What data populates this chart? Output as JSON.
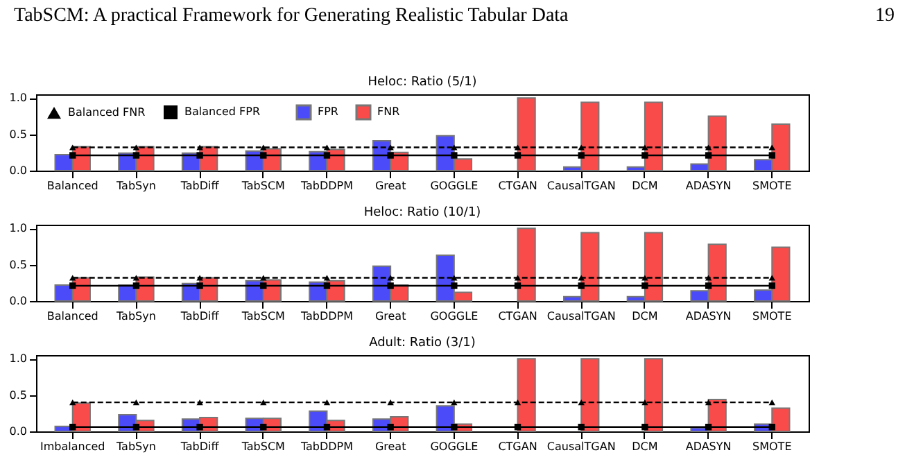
{
  "chart_data": [
    {
      "type": "bar",
      "title": "Heloc: Ratio (5/1)",
      "annotations": [
        "TabSCM: A practical Framework for Generating Realistic Tabular Data",
        "19"
      ],
      "categories": [
        "Balanced",
        "TabSyn",
        "TabDiff",
        "TabSCM",
        "TabDDPM",
        "Great",
        "GOGGLE",
        "CTGAN",
        "CausalTGAN",
        "DCM",
        "ADASYN",
        "SMOTE"
      ],
      "series": [
        {
          "name": "FPR",
          "color": "#4b4bfa",
          "values": [
            0.22,
            0.24,
            0.24,
            0.27,
            0.26,
            0.41,
            0.48,
            0.0,
            0.05,
            0.05,
            0.09,
            0.15
          ]
        },
        {
          "name": "FNR",
          "color": "#fa4b4b",
          "values": [
            0.33,
            0.33,
            0.33,
            0.3,
            0.29,
            0.25,
            0.16,
            1.0,
            0.94,
            0.94,
            0.75,
            0.64
          ]
        },
        {
          "name": "Balanced FNR",
          "type": "line",
          "color": "#000000",
          "marker": "triangle",
          "line_style": "dashed",
          "values": [
            0.32,
            0.32,
            0.32,
            0.32,
            0.32,
            0.32,
            0.32,
            0.32,
            0.32,
            0.32,
            0.32,
            0.32
          ]
        },
        {
          "name": "Balanced FPR",
          "type": "line",
          "color": "#000000",
          "marker": "square",
          "line_style": "solid",
          "values": [
            0.21,
            0.21,
            0.21,
            0.21,
            0.21,
            0.21,
            0.21,
            0.21,
            0.21,
            0.21,
            0.21,
            0.21
          ]
        }
      ],
      "ylim": [
        0,
        1.05
      ],
      "yticks": [
        {
          "value": 0,
          "label": "0.0"
        },
        {
          "value": 0.5,
          "label": "0.5"
        },
        {
          "value": 1,
          "label": "1.0"
        }
      ],
      "grid": false,
      "legend": "top left"
    },
    {
      "type": "bar",
      "title": "Heloc: Ratio (10/1)",
      "categories": [
        "Balanced",
        "TabSyn",
        "TabDiff",
        "TabSCM",
        "TabDDPM",
        "Great",
        "GOGGLE",
        "CTGAN",
        "CausalTGAN",
        "DCM",
        "ADASYN",
        "SMOTE"
      ],
      "series": [
        {
          "name": "FPR",
          "color": "#4b4bfa",
          "values": [
            0.22,
            0.22,
            0.24,
            0.28,
            0.26,
            0.48,
            0.63,
            0.0,
            0.06,
            0.06,
            0.14,
            0.15
          ]
        },
        {
          "name": "FNR",
          "color": "#fa4b4b",
          "values": [
            0.32,
            0.33,
            0.32,
            0.29,
            0.28,
            0.22,
            0.12,
            1.0,
            0.94,
            0.94,
            0.78,
            0.74
          ]
        },
        {
          "name": "Balanced FNR",
          "type": "line",
          "color": "#000000",
          "marker": "triangle",
          "line_style": "dashed",
          "values": [
            0.32,
            0.32,
            0.32,
            0.32,
            0.32,
            0.32,
            0.32,
            0.32,
            0.32,
            0.32,
            0.32,
            0.32
          ]
        },
        {
          "name": "Balanced FPR",
          "type": "line",
          "color": "#000000",
          "marker": "square",
          "line_style": "solid",
          "values": [
            0.21,
            0.21,
            0.21,
            0.21,
            0.21,
            0.21,
            0.21,
            0.21,
            0.21,
            0.21,
            0.21,
            0.21
          ]
        }
      ],
      "ylim": [
        0,
        1.05
      ],
      "yticks": [
        {
          "value": 0,
          "label": "0.0"
        },
        {
          "value": 0.5,
          "label": "0.5"
        },
        {
          "value": 1,
          "label": "1.0"
        }
      ],
      "grid": false,
      "legend": false
    },
    {
      "type": "bar",
      "title": "Adult: Ratio (3/1)",
      "categories": [
        "Imbalanced",
        "TabSyn",
        "TabDiff",
        "TabSCM",
        "TabDDPM",
        "Great",
        "GOGGLE",
        "CTGAN",
        "CausalTGAN",
        "DCM",
        "ADASYN",
        "SMOTE"
      ],
      "series": [
        {
          "name": "FPR",
          "color": "#4b4bfa",
          "values": [
            0.07,
            0.23,
            0.17,
            0.18,
            0.28,
            0.17,
            0.35,
            0.0,
            0.0,
            0.0,
            0.05,
            0.1
          ]
        },
        {
          "name": "FNR",
          "color": "#fa4b4b",
          "values": [
            0.39,
            0.15,
            0.19,
            0.18,
            0.15,
            0.2,
            0.1,
            1.0,
            1.0,
            1.0,
            0.44,
            0.32
          ]
        },
        {
          "name": "Balanced FNR",
          "type": "line",
          "color": "#000000",
          "marker": "triangle",
          "line_style": "dashed",
          "values": [
            0.4,
            0.4,
            0.4,
            0.4,
            0.4,
            0.4,
            0.4,
            0.4,
            0.4,
            0.4,
            0.4,
            0.4
          ]
        },
        {
          "name": "Balanced FPR",
          "type": "line",
          "color": "#000000",
          "marker": "square",
          "line_style": "solid",
          "values": [
            0.06,
            0.06,
            0.06,
            0.06,
            0.06,
            0.06,
            0.06,
            0.06,
            0.06,
            0.06,
            0.06,
            0.06
          ]
        }
      ],
      "ylim": [
        0,
        1.05
      ],
      "yticks": [
        {
          "value": 0,
          "label": "0.0"
        },
        {
          "value": 0.5,
          "label": "0.5"
        },
        {
          "value": 1,
          "label": "1.0"
        }
      ],
      "grid": false,
      "legend": false
    }
  ]
}
